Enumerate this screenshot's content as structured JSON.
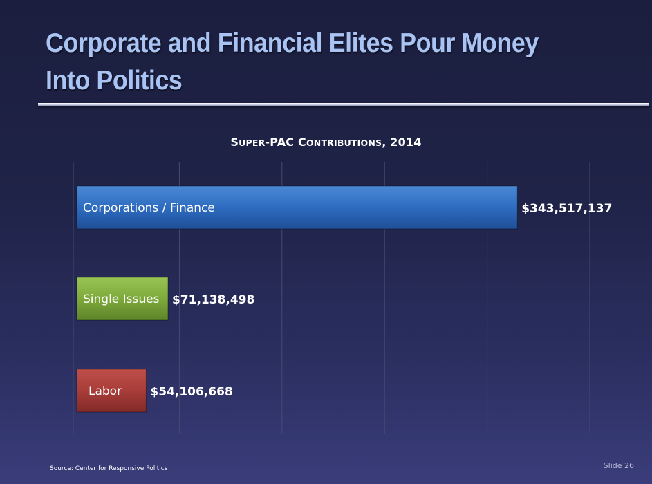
{
  "slide": {
    "title": "Corporate and Financial Elites Pour Money Into Politics",
    "source": "Source:  Center for Responsive Politics",
    "slide_number": "Slide 26"
  },
  "chart_title_parts": {
    "s1": "S",
    "s2": "UPER",
    "s3": "-PAC C",
    "s4": "ONTRIBUTIONS",
    "s5": ", 2014"
  },
  "chart_data": {
    "type": "bar",
    "orientation": "horizontal",
    "title": "Super-PAC Contributions, 2014",
    "categories": [
      "Corporations / Finance",
      "Single Issues",
      "Labor"
    ],
    "values": [
      343517137,
      71138498,
      54106668
    ],
    "value_labels": [
      "$343,517,137",
      "$71,138,498",
      "$54,106,668"
    ],
    "xlim": [
      0,
      400000000
    ],
    "grid": true,
    "colors": [
      "#2e6cc0",
      "#7eaa3c",
      "#a83d39"
    ]
  }
}
